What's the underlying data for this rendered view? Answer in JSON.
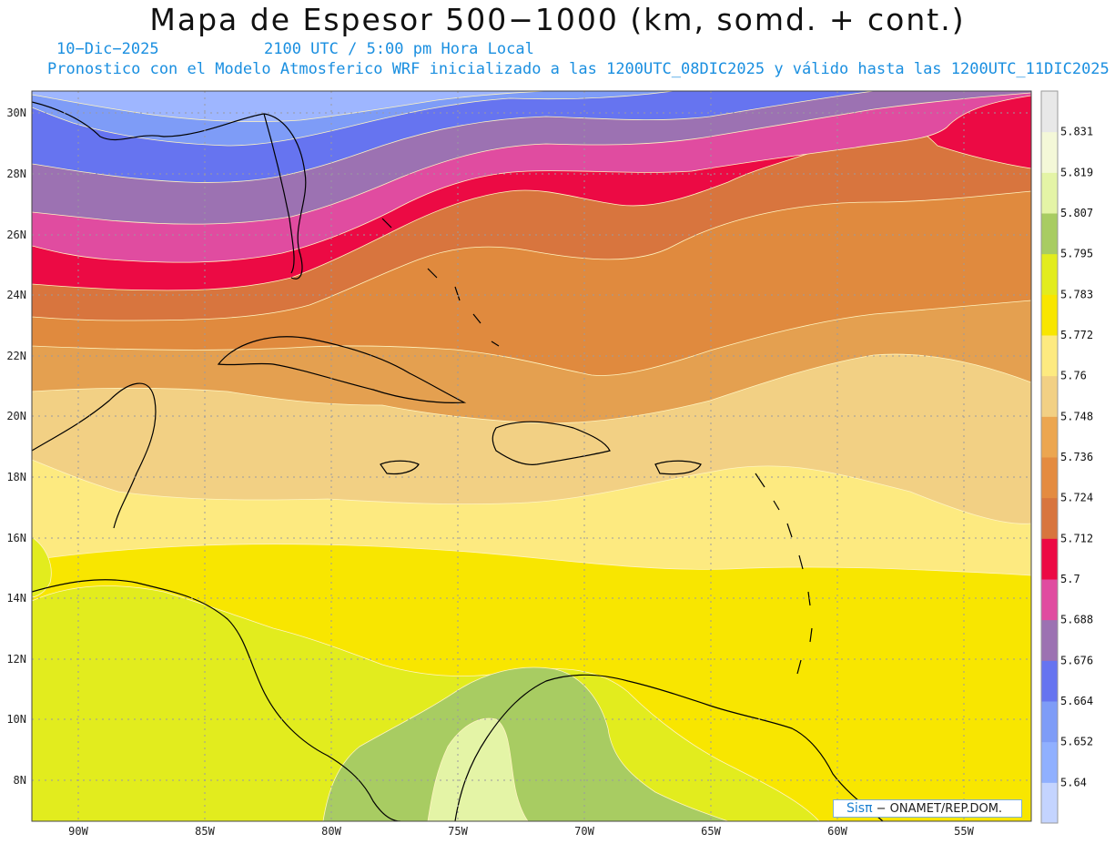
{
  "header": {
    "title": "Mapa de Espesor 500−1000 (km, somd. + cont.)",
    "date": "10−Dic−2025",
    "time": "2100 UTC / 5:00 pm Hora Local",
    "description": "Pronostico con el Modelo Atmosferico WRF inicializado a las 1200UTC_08DIC2025 y válido hasta las  1200UTC_11DIC2025"
  },
  "map": {
    "lon_ticks": [
      "90W",
      "85W",
      "80W",
      "75W",
      "70W",
      "65W",
      "60W",
      "55W"
    ],
    "lat_ticks": [
      "30N",
      "28N",
      "26N",
      "24N",
      "22N",
      "20N",
      "18N",
      "16N",
      "14N",
      "12N",
      "10N",
      "8N"
    ],
    "grid": true
  },
  "colorbar": {
    "labels": [
      "5.64",
      "5.652",
      "5.664",
      "5.676",
      "5.688",
      "5.7",
      "5.712",
      "5.724",
      "5.736",
      "5.748",
      "5.76",
      "5.772",
      "5.783",
      "5.795",
      "5.807",
      "5.819",
      "5.831"
    ],
    "colors": [
      "#c4d4ff",
      "#90b0ff",
      "#7e9cf7",
      "#6674f0",
      "#9c72b2",
      "#e04ca0",
      "#ec0a44",
      "#d8753e",
      "#e48b40",
      "#eca650",
      "#f2d084",
      "#fdea80",
      "#f8e600",
      "#e2ec1e",
      "#a8cc62",
      "#e4f4a6",
      "#f4f8d8",
      "#e8e8e8"
    ]
  },
  "credit": {
    "logo": "Sisπ",
    "text": "− ONAMET/REP.DOM."
  }
}
